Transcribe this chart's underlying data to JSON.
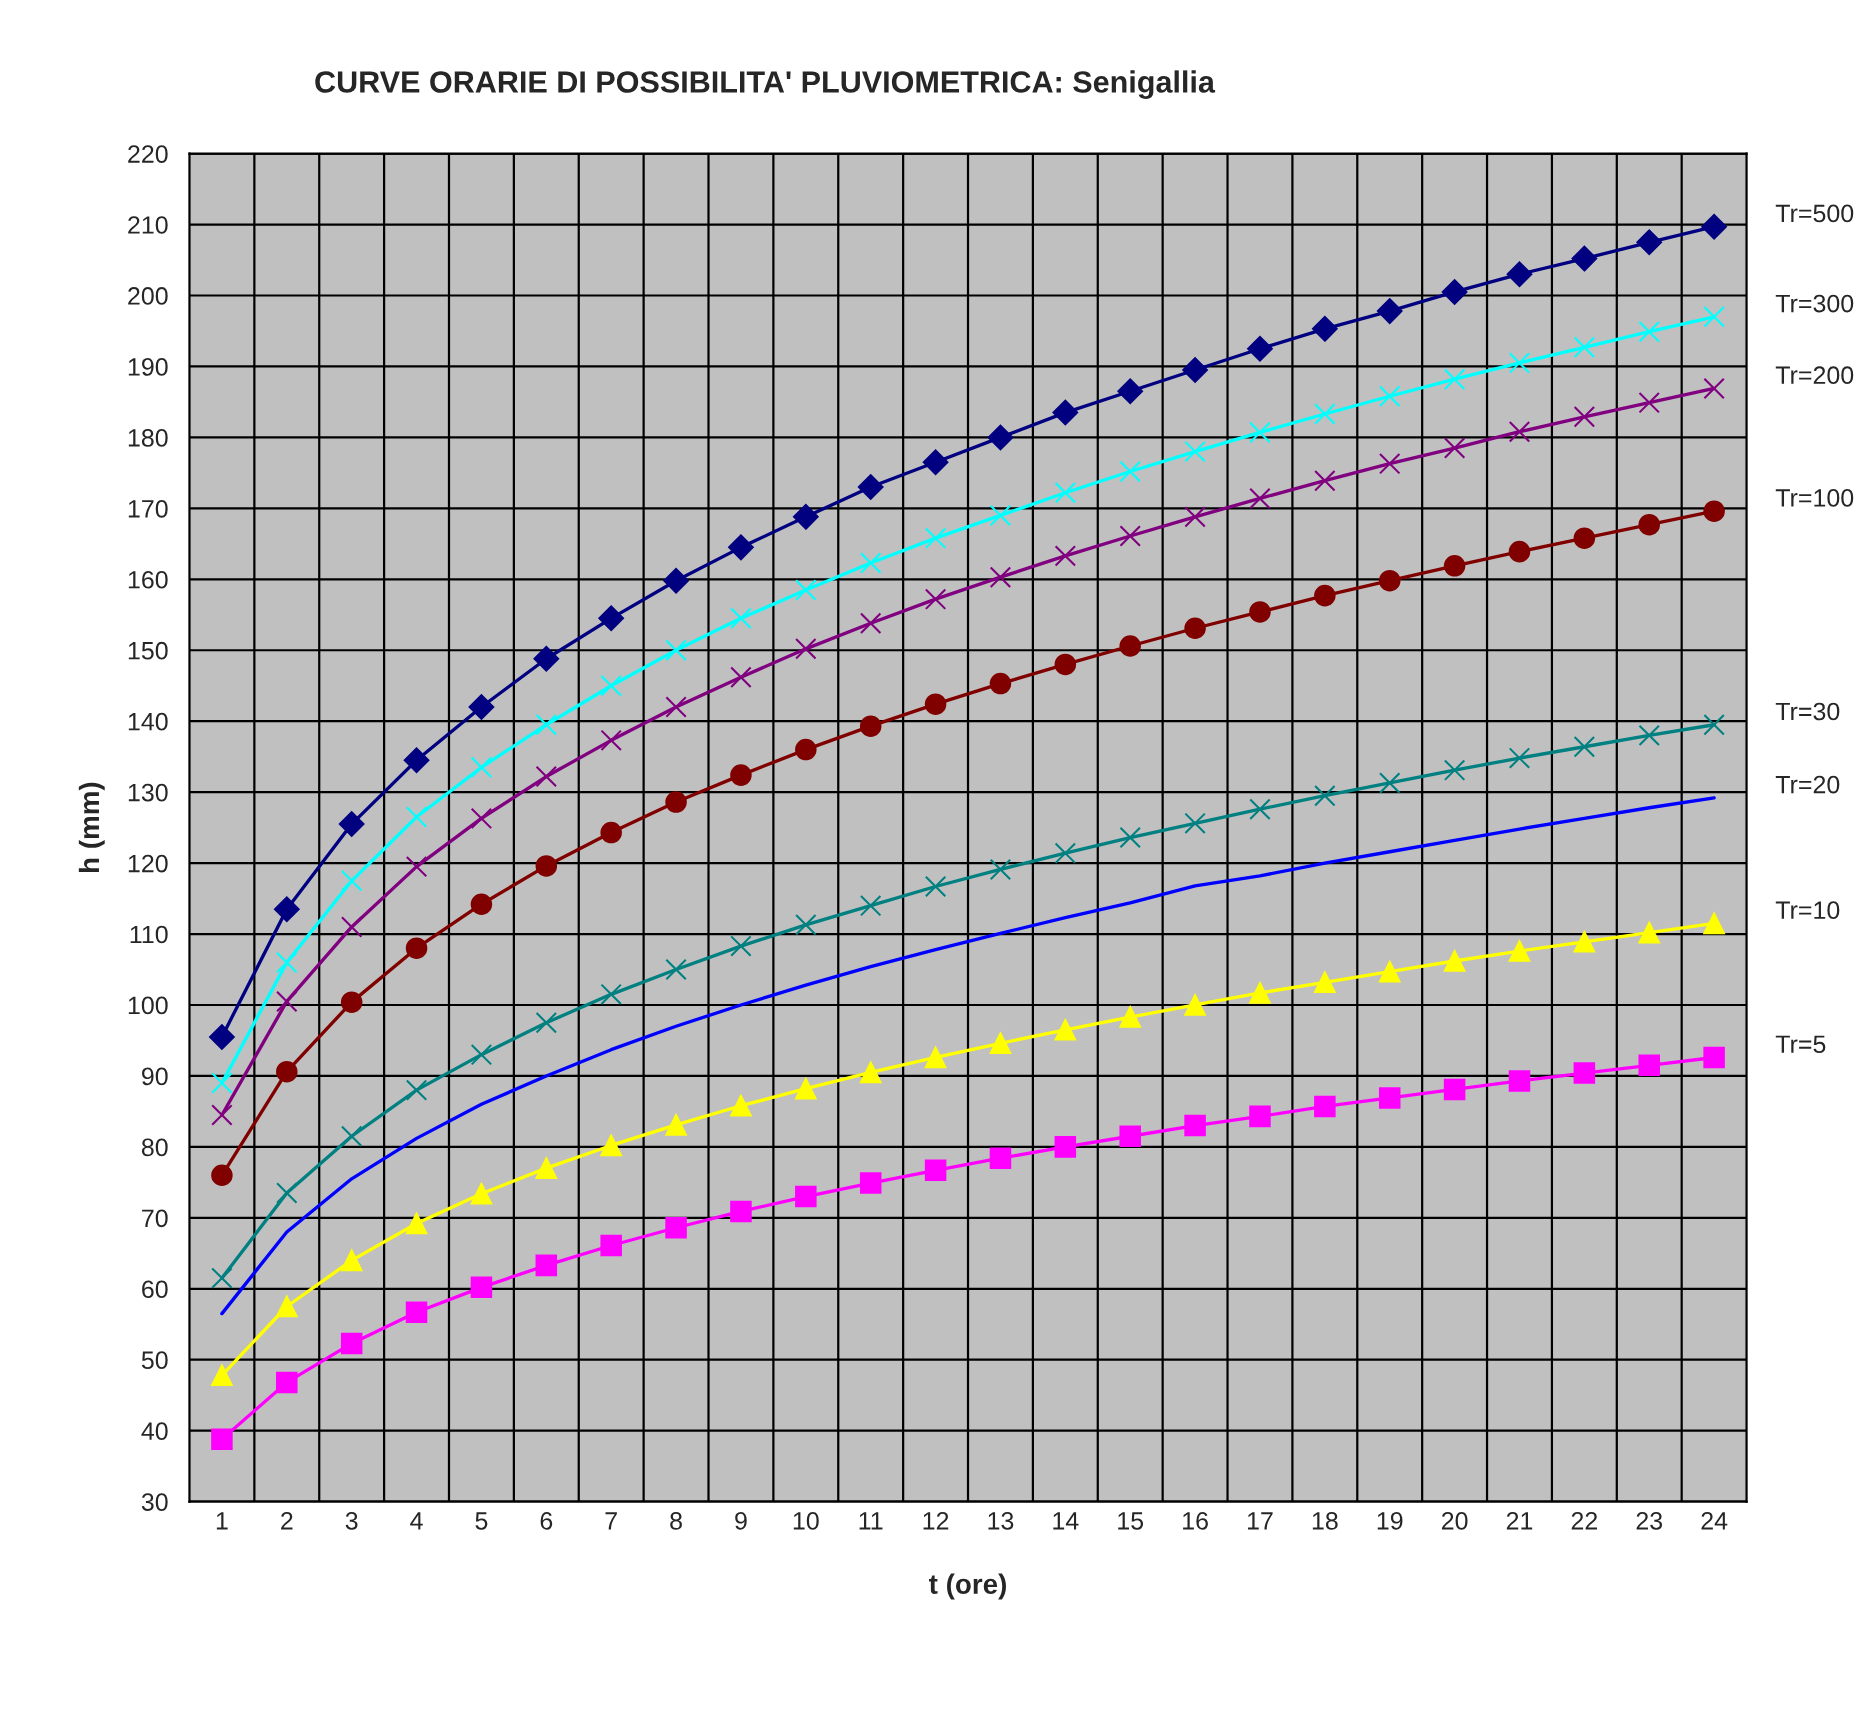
{
  "chart_data": {
    "type": "line",
    "title": "CURVE ORARIE DI POSSIBILITA' PLUVIOMETRICA: Senigallia",
    "xlabel": "t (ore)",
    "ylabel": "h (mm)",
    "categories": [
      "1",
      "2",
      "3",
      "4",
      "5",
      "6",
      "7",
      "8",
      "9",
      "10",
      "11",
      "12",
      "13",
      "14",
      "15",
      "16",
      "17",
      "18",
      "19",
      "20",
      "21",
      "22",
      "23",
      "24"
    ],
    "ylim": [
      30,
      220
    ],
    "yticks": [
      30,
      40,
      50,
      60,
      70,
      80,
      90,
      100,
      110,
      120,
      130,
      140,
      150,
      160,
      170,
      180,
      190,
      200,
      210,
      220
    ],
    "grid": true,
    "legend": false,
    "series": [
      {
        "name": "Tr=500",
        "color": "#000080",
        "marker": "diamond",
        "values": [
          95.5,
          113.5,
          125.5,
          134.5,
          142,
          148.8,
          154.5,
          159.8,
          164.5,
          168.8,
          173,
          176.5,
          180,
          183.5,
          186.5,
          189.5,
          192.5,
          195.3,
          197.8,
          200.5,
          203,
          205.2,
          207.5,
          209.7
        ]
      },
      {
        "name": "Tr=300",
        "color": "#00ffff",
        "marker": "cross",
        "values": [
          89,
          106,
          117.5,
          126.5,
          133.5,
          139.5,
          145,
          150,
          154.5,
          158.5,
          162.3,
          165.8,
          169,
          172.2,
          175.2,
          178,
          180.7,
          183.3,
          185.8,
          188.2,
          190.5,
          192.7,
          194.9,
          197
        ]
      },
      {
        "name": "Tr=200",
        "color": "#800080",
        "marker": "cross",
        "values": [
          84.5,
          100.5,
          111,
          119.5,
          126.3,
          132.2,
          137.3,
          142,
          146.2,
          150.2,
          153.8,
          157.2,
          160.3,
          163.3,
          166.1,
          168.8,
          171.4,
          173.9,
          176.3,
          178.5,
          180.8,
          182.9,
          184.9,
          186.9
        ]
      },
      {
        "name": "Tr=100",
        "color": "#800000",
        "marker": "circle",
        "values": [
          76,
          90.6,
          100.4,
          108,
          114.2,
          119.6,
          124.3,
          128.6,
          132.4,
          136,
          139.3,
          142.4,
          145.3,
          148,
          150.6,
          153.1,
          155.4,
          157.7,
          159.8,
          161.9,
          163.9,
          165.8,
          167.7,
          169.6
        ]
      },
      {
        "name": "Tr=30",
        "color": "#008080",
        "marker": "cross",
        "values": [
          61.5,
          73.5,
          81.5,
          88,
          93,
          97.5,
          101.5,
          105,
          108.3,
          111.3,
          114,
          116.7,
          119.1,
          121.4,
          123.6,
          125.6,
          127.6,
          129.5,
          131.3,
          133.1,
          134.8,
          136.4,
          138,
          139.5
        ]
      },
      {
        "name": "Tr=20",
        "color": "#0000ff",
        "marker": "none",
        "values": [
          56.5,
          68,
          75.5,
          81.2,
          86,
          90,
          93.7,
          97,
          100,
          102.8,
          105.4,
          107.8,
          110.1,
          112.3,
          114.4,
          116.8,
          118.2,
          120,
          121.6,
          123.2,
          124.8,
          126.3,
          127.8,
          129.2
        ]
      },
      {
        "name": "Tr=10",
        "color": "#ffff00",
        "marker": "triangle",
        "values": [
          47.8,
          57.5,
          64,
          69.2,
          73.4,
          77,
          80.2,
          83.1,
          85.8,
          88.2,
          90.5,
          92.6,
          94.6,
          96.5,
          98.3,
          100,
          101.7,
          103.2,
          104.7,
          106.2,
          107.6,
          108.9,
          110.2,
          111.5
        ]
      },
      {
        "name": "Tr=5",
        "color": "#ff00ff",
        "marker": "square",
        "values": [
          38.8,
          46.8,
          52.3,
          56.7,
          60.2,
          63.3,
          66.1,
          68.6,
          70.9,
          73,
          74.9,
          76.7,
          78.4,
          80,
          81.5,
          83,
          84.3,
          85.7,
          86.9,
          88.1,
          89.3,
          90.4,
          91.5,
          92.6
        ]
      }
    ]
  }
}
